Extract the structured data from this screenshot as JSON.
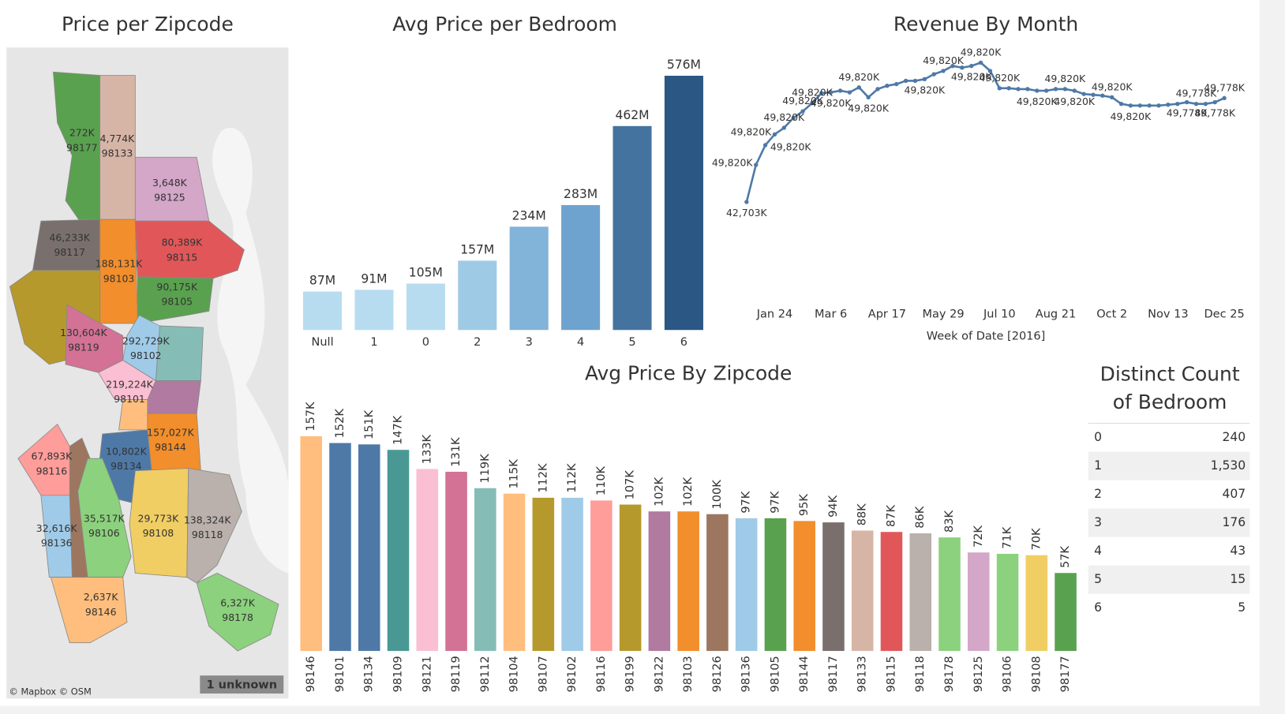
{
  "chart_data": [
    {
      "type": "map",
      "title": "Price per Zipcode",
      "categories": [
        "98177",
        "98133",
        "98125",
        "98117",
        "98103",
        "98115",
        "98105",
        "98119",
        "98102",
        "98101",
        "98144",
        "98116",
        "98134",
        "98136",
        "98106",
        "98108",
        "98118",
        "98146",
        "98178"
      ],
      "values": [
        272000,
        4774000,
        3648000,
        46233000,
        188131000,
        80389000,
        90175000,
        130604000,
        292729000,
        219224000,
        157027000,
        67893000,
        10802000,
        32616000,
        35517000,
        29773000,
        138324000,
        2637000,
        6327000
      ],
      "value_labels": [
        "272K",
        "4,774K",
        "3,648K",
        "46,233K",
        "188,131K",
        "80,389K",
        "90,175K",
        "130,604K",
        "292,729K",
        "219,224K",
        "157,027K",
        "67,893K",
        "10,802K",
        "32,616K",
        "35,517K",
        "29,773K",
        "138,324K",
        "2,637K",
        "6,327K"
      ],
      "colors": [
        "#59a14f",
        "#d7b5a6",
        "#d4a6c8",
        "#79706e",
        "#f28e2b",
        "#e15759",
        "#59a14f",
        "#d37295",
        "#a0cbe8",
        "#fabfd2",
        "#f28e2b",
        "#ff9d9a",
        "#4e79a7",
        "#a0cbe8",
        "#8cd17d",
        "#f1ce63",
        "#bab0ac",
        "#ffbe7d",
        "#8cd17d"
      ],
      "attribution": "© Mapbox © OSM",
      "unknown_badge": "1 unknown"
    },
    {
      "type": "bar",
      "title": "Avg Price per Bedroom",
      "categories": [
        "Null",
        "1",
        "0",
        "2",
        "3",
        "4",
        "5",
        "6"
      ],
      "values": [
        87000000,
        91000000,
        105000000,
        157000000,
        234000000,
        283000000,
        462000000,
        576000000
      ],
      "value_labels": [
        "87M",
        "91M",
        "105M",
        "157M",
        "234M",
        "283M",
        "462M",
        "576M"
      ],
      "colors": [
        "#b7dcf0",
        "#b7dcf0",
        "#b7dcf0",
        "#9fcae6",
        "#82b3d8",
        "#6fa3cf",
        "#44739f",
        "#2a5783"
      ],
      "ylim": [
        0,
        640000000
      ]
    },
    {
      "type": "line",
      "title": "Revenue By Month",
      "x_label": "Week of Date [2016]",
      "x": [
        "2016-01-03",
        "2016-01-10",
        "2016-01-17",
        "2016-01-24",
        "2016-01-31",
        "2016-02-07",
        "2016-02-14",
        "2016-02-21",
        "2016-02-28",
        "2016-03-06",
        "2016-03-13",
        "2016-03-20",
        "2016-03-27",
        "2016-04-03",
        "2016-04-10",
        "2016-04-17",
        "2016-04-24",
        "2016-05-01",
        "2016-05-08",
        "2016-05-15",
        "2016-05-22",
        "2016-05-29",
        "2016-06-05",
        "2016-06-12",
        "2016-06-19",
        "2016-06-26",
        "2016-07-03",
        "2016-07-10",
        "2016-07-17",
        "2016-07-24",
        "2016-07-31",
        "2016-08-07",
        "2016-08-14",
        "2016-08-21",
        "2016-08-28",
        "2016-09-04",
        "2016-09-11",
        "2016-09-18",
        "2016-09-25",
        "2016-10-02",
        "2016-10-09",
        "2016-10-16",
        "2016-10-23",
        "2016-10-30",
        "2016-11-06",
        "2016-11-13",
        "2016-11-20",
        "2016-11-27",
        "2016-12-04",
        "2016-12-11",
        "2016-12-18",
        "2016-12-25"
      ],
      "values": [
        42703,
        44503,
        45463,
        45983,
        46303,
        46783,
        47103,
        47503,
        47983,
        48023,
        48103,
        48023,
        48263,
        47783,
        48183,
        48343,
        48423,
        48583,
        48583,
        48663,
        48903,
        49063,
        49303,
        49223,
        49303,
        49463,
        49063,
        48223,
        48223,
        48183,
        48183,
        48103,
        48103,
        48183,
        48183,
        48103,
        47943,
        47903,
        47863,
        47783,
        47463,
        47383,
        47383,
        47383,
        47383,
        47423,
        47463,
        47543,
        47463,
        47463,
        47543,
        47743
      ],
      "color": "#4e79a7",
      "ylim": [
        38000,
        50200
      ],
      "xticks": [
        {
          "value": "2016-01-24",
          "label": "Jan 24"
        },
        {
          "value": "2016-03-06",
          "label": "Mar 6"
        },
        {
          "value": "2016-04-17",
          "label": "Apr 17"
        },
        {
          "value": "2016-05-29",
          "label": "May 29"
        },
        {
          "value": "2016-07-10",
          "label": "Jul 10"
        },
        {
          "value": "2016-08-21",
          "label": "Aug 21"
        },
        {
          "value": "2016-10-02",
          "label": "Oct 2"
        },
        {
          "value": "2016-11-13",
          "label": "Nov 13"
        },
        {
          "value": "2016-12-25",
          "label": "Dec 25"
        }
      ],
      "annotations": [
        {
          "x": "2016-01-03",
          "text": "42,703K"
        },
        {
          "x": "2016-01-10",
          "text": "49,820K"
        },
        {
          "x": "2016-01-17",
          "text": "49,820K"
        },
        {
          "x": "2016-01-24",
          "text": "49,820K"
        },
        {
          "x": "2016-01-31",
          "text": "49,820K"
        },
        {
          "x": "2016-02-14",
          "text": "49,820K"
        },
        {
          "x": "2016-02-21",
          "text": "49,820K"
        },
        {
          "x": "2016-03-06",
          "text": "49,820K"
        },
        {
          "x": "2016-03-27",
          "text": "49,820K"
        },
        {
          "x": "2016-04-03",
          "text": "49,820K"
        },
        {
          "x": "2016-05-15",
          "text": "49,820K"
        },
        {
          "x": "2016-05-29",
          "text": "49,820K"
        },
        {
          "x": "2016-06-26",
          "text": "49,820K"
        },
        {
          "x": "2016-06-19",
          "text": "49,820K"
        },
        {
          "x": "2016-07-10",
          "text": "49,820K"
        },
        {
          "x": "2016-08-07",
          "text": "49,820K"
        },
        {
          "x": "2016-08-28",
          "text": "49,820K"
        },
        {
          "x": "2016-09-04",
          "text": "49,820K"
        },
        {
          "x": "2016-10-02",
          "text": "49,820K"
        },
        {
          "x": "2016-10-16",
          "text": "49,820K"
        },
        {
          "x": "2016-12-04",
          "text": "49,778K"
        },
        {
          "x": "2016-11-27",
          "text": "49,778K"
        },
        {
          "x": "2016-12-25",
          "text": "49,778K"
        },
        {
          "x": "2016-12-18",
          "text": "49,778K"
        }
      ]
    },
    {
      "type": "bar",
      "title": "Avg Price By Zipcode",
      "categories": [
        "98146",
        "98101",
        "98134",
        "98109",
        "98121",
        "98119",
        "98112",
        "98104",
        "98107",
        "98102",
        "98116",
        "98199",
        "98122",
        "98103",
        "98126",
        "98136",
        "98105",
        "98144",
        "98117",
        "98133",
        "98115",
        "98118",
        "98178",
        "98125",
        "98106",
        "98108",
        "98177"
      ],
      "values": [
        157000,
        152000,
        151000,
        147000,
        133000,
        131000,
        119000,
        115000,
        112000,
        112000,
        110000,
        107000,
        102000,
        102000,
        100000,
        97000,
        97000,
        95000,
        94000,
        88000,
        87000,
        86000,
        83000,
        72000,
        71000,
        70000,
        57000
      ],
      "value_labels": [
        "157K",
        "152K",
        "151K",
        "147K",
        "133K",
        "131K",
        "119K",
        "115K",
        "112K",
        "112K",
        "110K",
        "107K",
        "102K",
        "102K",
        "100K",
        "97K",
        "97K",
        "95K",
        "94K",
        "88K",
        "87K",
        "86K",
        "83K",
        "72K",
        "71K",
        "70K",
        "57K"
      ],
      "colors": [
        "#ffbe7d",
        "#4e79a7",
        "#4e79a7",
        "#499894",
        "#fabfd2",
        "#d37295",
        "#86bcb6",
        "#ffbe7d",
        "#b6992d",
        "#a0cbe8",
        "#ff9d9a",
        "#b6992d",
        "#b07aa1",
        "#f28e2b",
        "#9d7660",
        "#a0cbe8",
        "#59a14f",
        "#f28e2b",
        "#79706e",
        "#d7b5a6",
        "#e15759",
        "#bab0ac",
        "#8cd17d",
        "#d4a6c8",
        "#8cd17d",
        "#f1ce63",
        "#59a14f"
      ],
      "ylim": [
        0,
        170000
      ]
    },
    {
      "type": "table",
      "title": "Distinct Count of Bedroom",
      "categories": [
        "0",
        "1",
        "2",
        "3",
        "4",
        "5",
        "6"
      ],
      "values": [
        240,
        1530,
        407,
        176,
        43,
        15,
        5
      ],
      "value_labels": [
        "240",
        "1,530",
        "407",
        "176",
        "43",
        "15",
        "5"
      ]
    }
  ]
}
